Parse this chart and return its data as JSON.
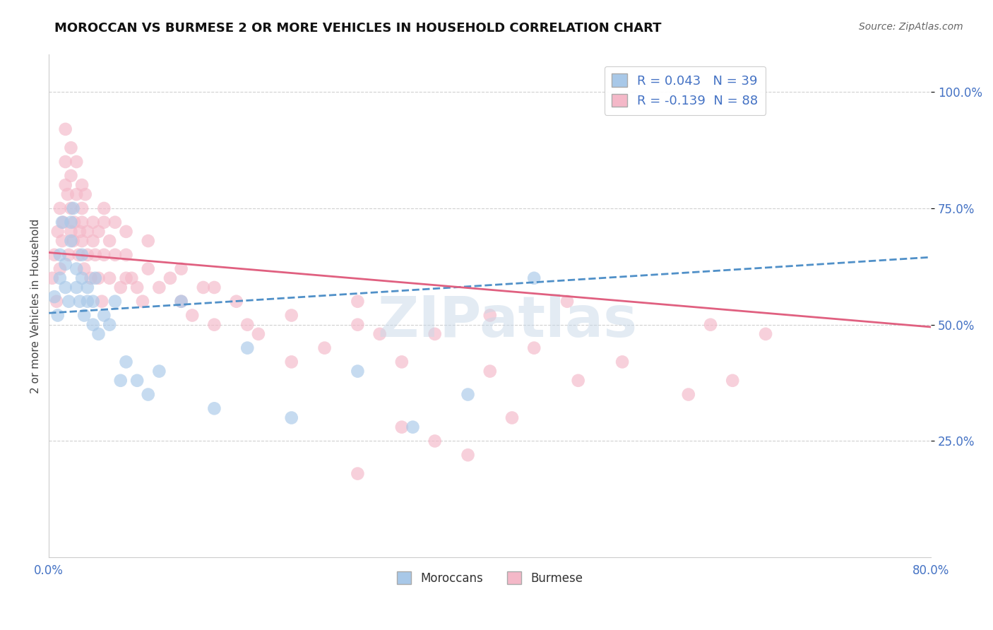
{
  "title": "MOROCCAN VS BURMESE 2 OR MORE VEHICLES IN HOUSEHOLD CORRELATION CHART",
  "source": "Source: ZipAtlas.com",
  "ylabel": "2 or more Vehicles in Household",
  "ytick_labels": [
    "100.0%",
    "75.0%",
    "50.0%",
    "25.0%"
  ],
  "ytick_values": [
    1.0,
    0.75,
    0.5,
    0.25
  ],
  "xmin": 0.0,
  "xmax": 0.8,
  "ymin": 0.0,
  "ymax": 1.08,
  "legend_label1": "Moroccans",
  "legend_label2": "Burmese",
  "R1": 0.043,
  "N1": 39,
  "R2": -0.139,
  "N2": 88,
  "color_blue": "#a8c8e8",
  "color_pink": "#f4b8c8",
  "color_trend_blue": "#5090c8",
  "color_trend_pink": "#e06080",
  "watermark": "ZIPatlas",
  "moroccan_x": [
    0.005,
    0.008,
    0.01,
    0.01,
    0.012,
    0.015,
    0.015,
    0.018,
    0.02,
    0.02,
    0.022,
    0.025,
    0.025,
    0.028,
    0.03,
    0.03,
    0.032,
    0.035,
    0.035,
    0.04,
    0.04,
    0.042,
    0.045,
    0.05,
    0.055,
    0.06,
    0.065,
    0.07,
    0.08,
    0.09,
    0.1,
    0.12,
    0.15,
    0.18,
    0.22,
    0.28,
    0.33,
    0.38,
    0.44
  ],
  "moroccan_y": [
    0.56,
    0.52,
    0.6,
    0.65,
    0.72,
    0.58,
    0.63,
    0.55,
    0.68,
    0.72,
    0.75,
    0.62,
    0.58,
    0.55,
    0.6,
    0.65,
    0.52,
    0.55,
    0.58,
    0.5,
    0.55,
    0.6,
    0.48,
    0.52,
    0.5,
    0.55,
    0.38,
    0.42,
    0.38,
    0.35,
    0.4,
    0.55,
    0.32,
    0.45,
    0.3,
    0.4,
    0.28,
    0.35,
    0.6
  ],
  "burmese_x": [
    0.003,
    0.005,
    0.007,
    0.008,
    0.01,
    0.01,
    0.012,
    0.013,
    0.015,
    0.015,
    0.017,
    0.018,
    0.02,
    0.02,
    0.02,
    0.022,
    0.023,
    0.025,
    0.025,
    0.027,
    0.028,
    0.03,
    0.03,
    0.03,
    0.032,
    0.033,
    0.035,
    0.035,
    0.038,
    0.04,
    0.04,
    0.042,
    0.045,
    0.045,
    0.048,
    0.05,
    0.05,
    0.055,
    0.055,
    0.06,
    0.06,
    0.065,
    0.07,
    0.07,
    0.075,
    0.08,
    0.085,
    0.09,
    0.1,
    0.11,
    0.12,
    0.13,
    0.14,
    0.15,
    0.17,
    0.19,
    0.22,
    0.25,
    0.28,
    0.32,
    0.35,
    0.4,
    0.44,
    0.48,
    0.52,
    0.58,
    0.62,
    0.4,
    0.3,
    0.28,
    0.22,
    0.18,
    0.15,
    0.12,
    0.09,
    0.07,
    0.05,
    0.03,
    0.02,
    0.015,
    0.6,
    0.65,
    0.47,
    0.35,
    0.42,
    0.38,
    0.32,
    0.28
  ],
  "burmese_y": [
    0.6,
    0.65,
    0.55,
    0.7,
    0.62,
    0.75,
    0.68,
    0.72,
    0.8,
    0.85,
    0.78,
    0.65,
    0.7,
    0.75,
    0.82,
    0.68,
    0.72,
    0.78,
    0.85,
    0.65,
    0.7,
    0.72,
    0.68,
    0.75,
    0.62,
    0.78,
    0.65,
    0.7,
    0.6,
    0.68,
    0.72,
    0.65,
    0.6,
    0.7,
    0.55,
    0.65,
    0.75,
    0.6,
    0.68,
    0.65,
    0.72,
    0.58,
    0.65,
    0.7,
    0.6,
    0.58,
    0.55,
    0.62,
    0.58,
    0.6,
    0.55,
    0.52,
    0.58,
    0.5,
    0.55,
    0.48,
    0.52,
    0.45,
    0.5,
    0.42,
    0.48,
    0.4,
    0.45,
    0.38,
    0.42,
    0.35,
    0.38,
    0.52,
    0.48,
    0.55,
    0.42,
    0.5,
    0.58,
    0.62,
    0.68,
    0.6,
    0.72,
    0.8,
    0.88,
    0.92,
    0.5,
    0.48,
    0.55,
    0.25,
    0.3,
    0.22,
    0.28,
    0.18
  ]
}
